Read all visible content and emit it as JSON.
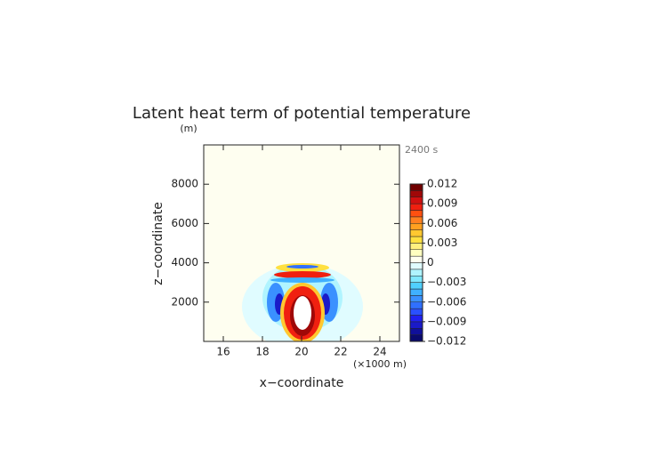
{
  "chart_data": {
    "type": "heatmap",
    "title": "Latent heat term of potential temperature",
    "ylabel_unit": "(m)",
    "time_label": "2400 s",
    "xlabel_unit": "(×1000 m)",
    "xlabel": "x−coordinate",
    "ylabel": "z−coordinate",
    "xlim": [
      15,
      25
    ],
    "xticks": [
      16,
      18,
      20,
      22,
      24
    ],
    "ylim": [
      0,
      10000
    ],
    "yticks": [
      2000,
      4000,
      6000,
      8000
    ],
    "background": "#fefef0",
    "clim": [
      -0.012,
      0.012
    ],
    "cticks": [
      0.012,
      0.009,
      0.006,
      0.003,
      0,
      {
        "value": -0.003,
        "label": "−0.003"
      },
      {
        "value": -0.006,
        "label": "−0.006"
      },
      {
        "value": -0.009,
        "label": "−0.009"
      },
      {
        "value": -0.012,
        "label": "−0.012"
      }
    ],
    "colors": [
      "#0a0a6e",
      "#10109a",
      "#1a1ac8",
      "#2020f0",
      "#2a50ff",
      "#3070ff",
      "#3a90ff",
      "#40b0ff",
      "#50d0ff",
      "#80e8ff",
      "#b0f4ff",
      "#e0fcff",
      "#fffff0",
      "#ffffc0",
      "#fff080",
      "#ffe040",
      "#ffc830",
      "#ffa020",
      "#ff8020",
      "#ff5010",
      "#f02010",
      "#d01010",
      "#a00808",
      "#700000"
    ]
  }
}
